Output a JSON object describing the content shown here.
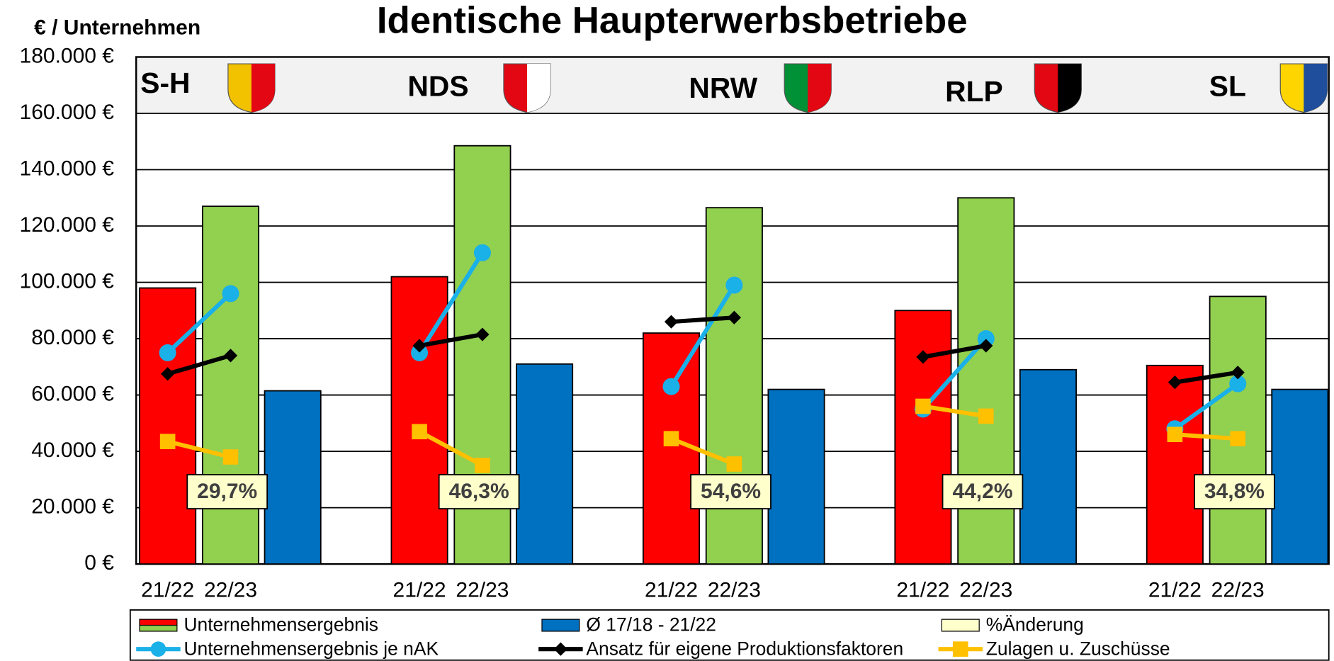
{
  "chart_data": {
    "type": "bar",
    "title": "Identische Haupterwerbsbetriebe",
    "y_axis_label": "€ / Unternehmen",
    "categories": [
      "S-H",
      "NDS",
      "NRW",
      "RLP",
      "SL"
    ],
    "periods": [
      "21/22",
      "22/23"
    ],
    "ylim": [
      0,
      180000
    ],
    "yticks": [
      {
        "value": 0,
        "label": "0 €"
      },
      {
        "value": 20000,
        "label": "20.000 €"
      },
      {
        "value": 40000,
        "label": "40.000 €"
      },
      {
        "value": 60000,
        "label": "60.000 €"
      },
      {
        "value": 80000,
        "label": "80.000 €"
      },
      {
        "value": 100000,
        "label": "100.000 €"
      },
      {
        "value": 120000,
        "label": "120.000 €"
      },
      {
        "value": 140000,
        "label": "140.000 €"
      },
      {
        "value": 160000,
        "label": "160.000 €"
      },
      {
        "value": 180000,
        "label": "180.000 €"
      }
    ],
    "grid": true,
    "series": [
      {
        "name": "Unternehmensergebnis",
        "type": "bar",
        "colors": [
          "#ff0000",
          "#92d050"
        ],
        "values": [
          [
            98000,
            127000
          ],
          [
            102000,
            148500
          ],
          [
            82000,
            126500
          ],
          [
            90000,
            130000
          ],
          [
            70500,
            95000
          ]
        ]
      },
      {
        "name": "Ø 17/18 - 21/22",
        "type": "bar",
        "color": "#0070c0",
        "values": [
          61500,
          71000,
          62000,
          69000,
          62000
        ]
      },
      {
        "name": "%Änderung",
        "type": "label",
        "color": "#ffffcc",
        "values": [
          29.7,
          46.3,
          54.6,
          44.2,
          34.8
        ],
        "value_labels": [
          "29,7%",
          "46,3%",
          "54,6%",
          "44,2%",
          "34,8%"
        ]
      },
      {
        "name": "Unternehmensergebnis je nAK",
        "type": "line",
        "color": "#1ab0e8",
        "marker": "circle",
        "values": [
          [
            75000,
            96000
          ],
          [
            75000,
            110500
          ],
          [
            63000,
            99000
          ],
          [
            55000,
            80000
          ],
          [
            48000,
            64000
          ]
        ]
      },
      {
        "name": "Ansatz für eigene Produktionsfaktoren",
        "type": "line",
        "color": "#000000",
        "marker": "diamond",
        "values": [
          [
            67500,
            74000
          ],
          [
            77500,
            81500
          ],
          [
            86000,
            87500
          ],
          [
            73500,
            77500
          ],
          [
            64500,
            68000
          ]
        ]
      },
      {
        "name": "Zulagen u. Zuschüsse",
        "type": "line",
        "color": "#ffc000",
        "marker": "square",
        "values": [
          [
            43500,
            38000
          ],
          [
            47000,
            35000
          ],
          [
            44500,
            35500
          ],
          [
            56000,
            52500
          ],
          [
            46000,
            44500
          ]
        ]
      }
    ]
  }
}
